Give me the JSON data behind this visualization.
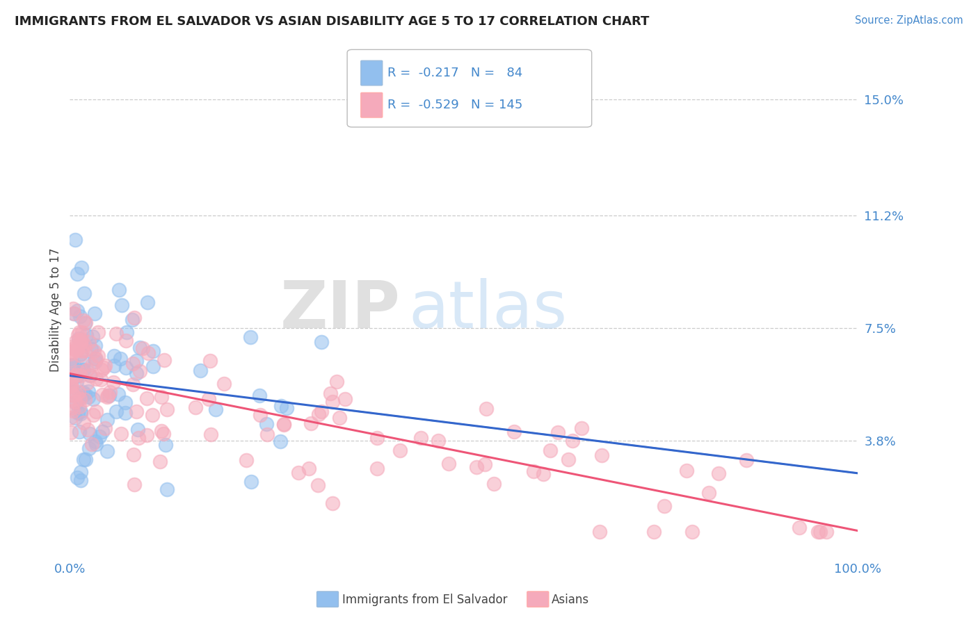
{
  "title": "IMMIGRANTS FROM EL SALVADOR VS ASIAN DISABILITY AGE 5 TO 17 CORRELATION CHART",
  "source": "Source: ZipAtlas.com",
  "xlabel": "",
  "ylabel": "Disability Age 5 to 17",
  "xlim": [
    0.0,
    1.0
  ],
  "ylim": [
    0.0,
    0.162
  ],
  "yticks": [
    0.038,
    0.075,
    0.112,
    0.15
  ],
  "ytick_labels": [
    "3.8%",
    "7.5%",
    "11.2%",
    "15.0%"
  ],
  "xtick_labels": [
    "0.0%",
    "100.0%"
  ],
  "watermark_zip": "ZIP",
  "watermark_atlas": "atlas",
  "legend_R1": "-0.217",
  "legend_N1": "84",
  "legend_R2": "-0.529",
  "legend_N2": "145",
  "blue_color": "#92BFEE",
  "pink_color": "#F5AABB",
  "blue_line_color": "#3366CC",
  "pink_line_color": "#EE5577",
  "dash_line_color": "#99BBDD",
  "title_color": "#222222",
  "axis_label_color": "#444444",
  "tick_color": "#4488CC",
  "background_color": "#FFFFFF",
  "grid_color": "#CCCCCC",
  "source_color": "#4488CC"
}
